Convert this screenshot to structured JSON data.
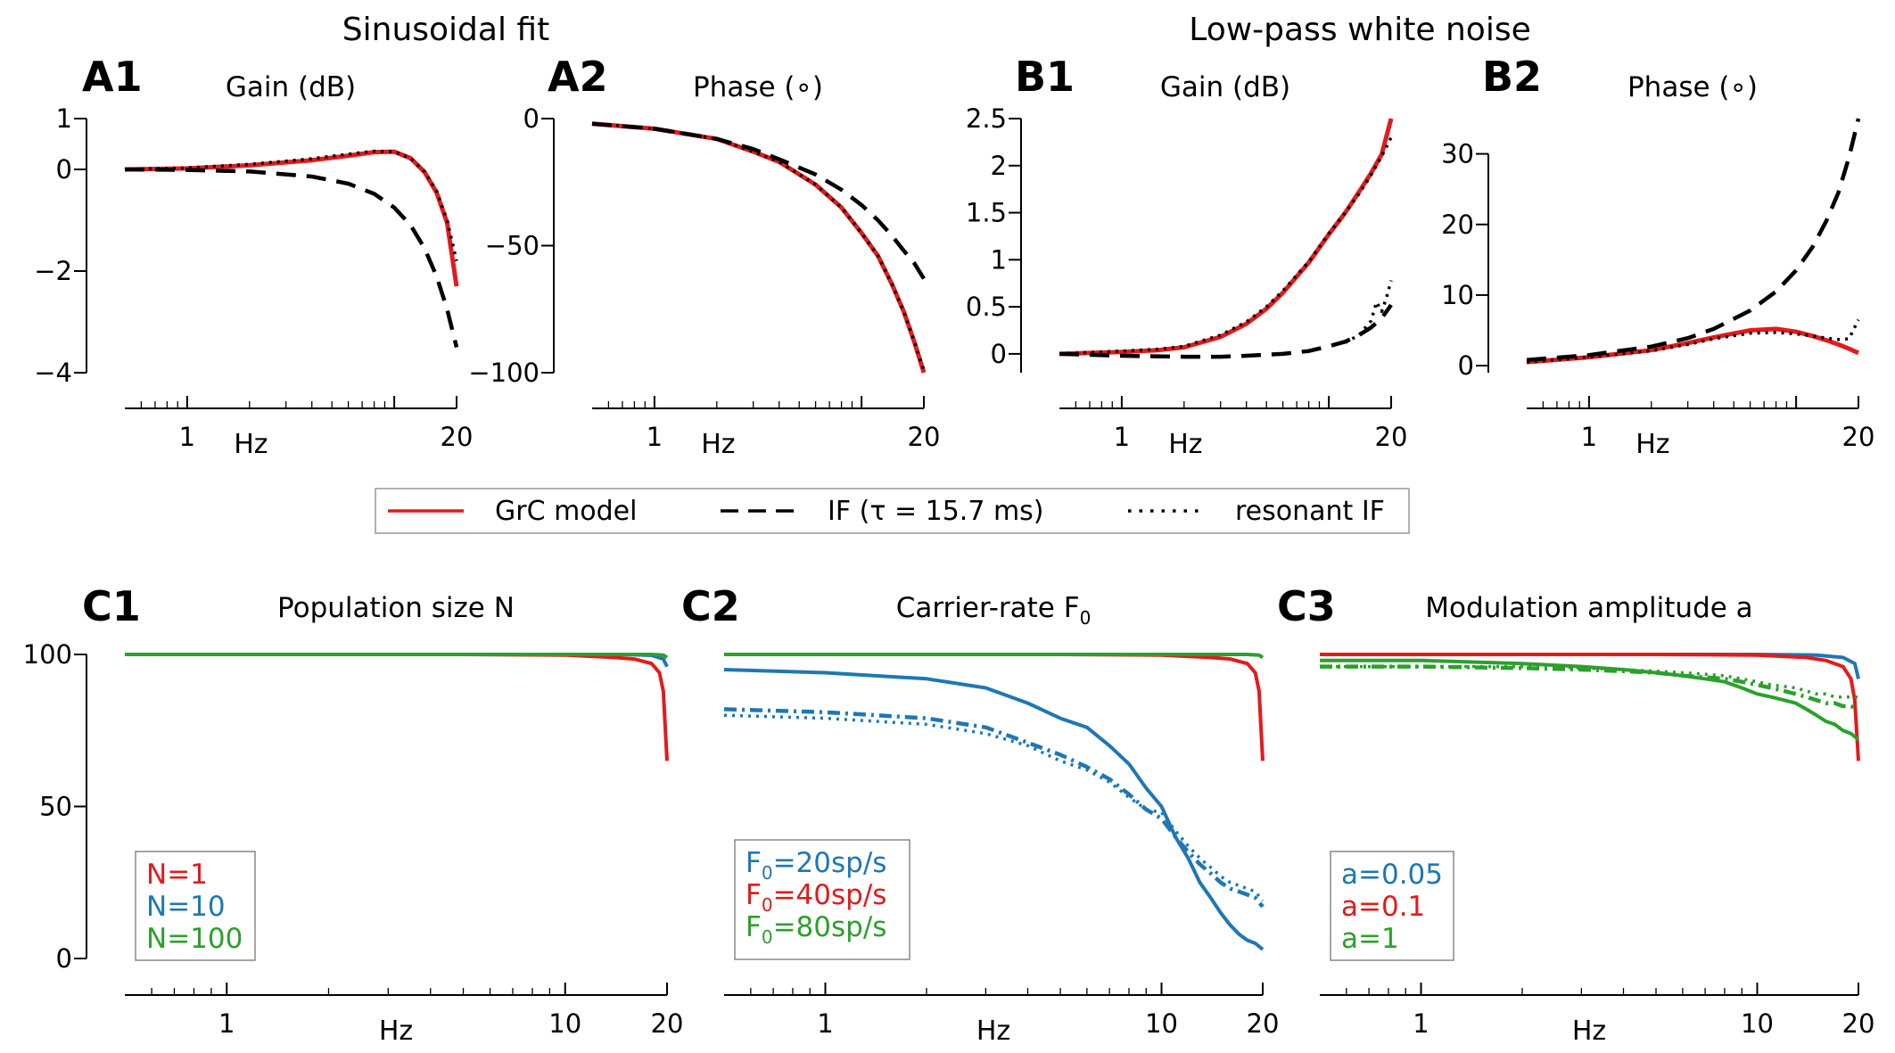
{
  "figure": {
    "group_titles": {
      "sinusoidal": "Sinusoidal fit",
      "lowpass": "Low-pass white noise"
    },
    "legend_top": [
      {
        "label": "GrC model",
        "color": "#e31a1c",
        "style": "solid"
      },
      {
        "label": "IF (τ = 15.7 ms)",
        "color": "#000000",
        "style": "dashed"
      },
      {
        "label": "resonant IF",
        "color": "#000000",
        "style": "dotted"
      }
    ],
    "colors": {
      "red": "#e31a1c",
      "blue": "#1f77b4",
      "green": "#2ca02c",
      "black": "#000000"
    }
  },
  "chart_data": [
    {
      "id": "A1",
      "panel_label": "A1",
      "title": "Gain (dB)",
      "type": "line",
      "xlabel": "Hz",
      "xscale": "log",
      "xlim": [
        0.5,
        20
      ],
      "xticks": [
        1,
        20
      ],
      "ylim": [
        -4,
        1
      ],
      "yticks": [
        1,
        0,
        -2,
        -4
      ],
      "ytick_labels": [
        "1",
        "0",
        "−2",
        "−4"
      ],
      "series": [
        {
          "color": "#e31a1c",
          "style": "solid",
          "x": [
            0.5,
            1,
            2,
            4,
            6,
            8,
            10,
            12,
            14,
            16,
            18,
            20
          ],
          "y": [
            0,
            0.02,
            0.08,
            0.18,
            0.27,
            0.34,
            0.35,
            0.22,
            -0.05,
            -0.45,
            -1.05,
            -2.3
          ]
        },
        {
          "color": "#000000",
          "style": "dashed",
          "x": [
            0.5,
            1,
            2,
            4,
            6,
            8,
            10,
            12,
            14,
            16,
            18,
            20
          ],
          "y": [
            0,
            -0.01,
            -0.04,
            -0.14,
            -0.28,
            -0.48,
            -0.75,
            -1.1,
            -1.55,
            -2.1,
            -2.75,
            -3.5
          ]
        },
        {
          "color": "#000000",
          "style": "dotted",
          "x": [
            0.5,
            1,
            2,
            4,
            6,
            8,
            10,
            12,
            14,
            16,
            18,
            20
          ],
          "y": [
            0,
            0.03,
            0.1,
            0.21,
            0.3,
            0.36,
            0.35,
            0.22,
            -0.05,
            -0.42,
            -1.0,
            -1.8
          ]
        }
      ]
    },
    {
      "id": "A2",
      "panel_label": "A2",
      "title": "Phase (∘)",
      "type": "line",
      "xlabel": "Hz",
      "xscale": "log",
      "xlim": [
        0.5,
        20
      ],
      "xticks": [
        1,
        20
      ],
      "ylim": [
        -100,
        0
      ],
      "yticks": [
        0,
        -50,
        -100
      ],
      "ytick_labels": [
        "0",
        "−50",
        "−100"
      ],
      "series": [
        {
          "color": "#e31a1c",
          "style": "solid",
          "x": [
            0.5,
            1,
            2,
            3,
            4,
            6,
            8,
            10,
            12,
            14,
            16,
            18,
            20
          ],
          "y": [
            -2,
            -4,
            -8,
            -13,
            -17,
            -26,
            -35,
            -45,
            -54,
            -65,
            -76,
            -88,
            -100
          ]
        },
        {
          "color": "#000000",
          "style": "dashed",
          "x": [
            0.5,
            1,
            2,
            3,
            4,
            6,
            8,
            10,
            12,
            14,
            16,
            18,
            20
          ],
          "y": [
            -2,
            -4,
            -8,
            -12,
            -16,
            -22,
            -28,
            -34,
            -40,
            -46,
            -52,
            -57,
            -63
          ]
        },
        {
          "color": "#000000",
          "style": "dotted",
          "x": [
            0.5,
            1,
            2,
            3,
            4,
            6,
            8,
            10,
            12,
            14,
            16,
            18,
            20
          ],
          "y": [
            -2,
            -4,
            -8,
            -13,
            -17,
            -26,
            -35,
            -45,
            -54,
            -65,
            -76,
            -88,
            -99
          ]
        }
      ]
    },
    {
      "id": "B1",
      "panel_label": "B1",
      "title": "Gain (dB)",
      "type": "line",
      "xlabel": "Hz",
      "xscale": "log",
      "xlim": [
        0.5,
        20
      ],
      "xticks": [
        1,
        20
      ],
      "ylim": [
        -0.2,
        2.5
      ],
      "yticks": [
        2.5,
        2,
        1.5,
        1,
        0.5,
        0
      ],
      "ytick_labels": [
        "2.5",
        "2",
        "1.5",
        "1",
        "0.5",
        "0"
      ],
      "series": [
        {
          "color": "#e31a1c",
          "style": "solid",
          "x": [
            0.5,
            1,
            1.5,
            2,
            3,
            4,
            5,
            6,
            8,
            10,
            12,
            14,
            16,
            18,
            20
          ],
          "y": [
            0,
            0.02,
            0.04,
            0.07,
            0.18,
            0.32,
            0.48,
            0.65,
            0.97,
            1.27,
            1.5,
            1.72,
            1.92,
            2.12,
            2.5
          ]
        },
        {
          "color": "#000000",
          "style": "dashed",
          "x": [
            0.5,
            1,
            2,
            3,
            4,
            6,
            8,
            10,
            12,
            14,
            16,
            18,
            20
          ],
          "y": [
            0,
            -0.02,
            -0.03,
            -0.03,
            -0.02,
            0.0,
            0.03,
            0.08,
            0.13,
            0.2,
            0.28,
            0.38,
            0.52
          ]
        },
        {
          "color": "#000000",
          "style": "dotted",
          "x": [
            0.5,
            1,
            1.5,
            2,
            3,
            4,
            5,
            6,
            8,
            10,
            12,
            14,
            16,
            18,
            20
          ],
          "y": [
            0,
            0.03,
            0.05,
            0.08,
            0.2,
            0.34,
            0.5,
            0.67,
            0.98,
            1.28,
            1.5,
            1.7,
            1.9,
            2.1,
            2.3
          ]
        },
        {
          "color": "#000000",
          "style": "dotted",
          "x": [
            12,
            14,
            16,
            17,
            18,
            19,
            20
          ],
          "y": [
            0.12,
            0.2,
            0.35,
            0.55,
            0.45,
            0.6,
            0.78
          ]
        }
      ]
    },
    {
      "id": "B2",
      "panel_label": "B2",
      "title": "Phase (∘)",
      "type": "line",
      "xlabel": "Hz",
      "xscale": "log",
      "xlim": [
        0.5,
        20
      ],
      "xticks": [
        1,
        20
      ],
      "ylim": [
        -1,
        35
      ],
      "yticks": [
        30,
        20,
        10,
        0
      ],
      "ytick_labels": [
        "30",
        "20",
        "10",
        "0"
      ],
      "series": [
        {
          "color": "#e31a1c",
          "style": "solid",
          "x": [
            0.5,
            1,
            2,
            3,
            4,
            6,
            8,
            10,
            12,
            14,
            16,
            18,
            20
          ],
          "y": [
            0.5,
            1.2,
            2.2,
            3.2,
            4.0,
            5.0,
            5.2,
            4.8,
            4.2,
            3.6,
            3.0,
            2.4,
            1.8
          ]
        },
        {
          "color": "#000000",
          "style": "dashed",
          "x": [
            0.5,
            1,
            2,
            3,
            4,
            6,
            8,
            10,
            12,
            14,
            16,
            18,
            20
          ],
          "y": [
            0.8,
            1.5,
            2.7,
            3.9,
            5.2,
            7.8,
            10.5,
            13.5,
            16.8,
            20.5,
            24.5,
            29.5,
            35
          ]
        },
        {
          "color": "#000000",
          "style": "dotted",
          "x": [
            0.5,
            1,
            2,
            3,
            4,
            6,
            8,
            10,
            12,
            14,
            16,
            18,
            20
          ],
          "y": [
            0.5,
            1.2,
            2.1,
            3.0,
            3.8,
            4.6,
            4.7,
            4.5,
            4.2,
            3.9,
            3.7,
            3.8,
            6.5
          ]
        }
      ]
    },
    {
      "id": "C1",
      "panel_label": "C1",
      "title": "Population size N",
      "type": "line",
      "xlabel": "Hz",
      "xscale": "log",
      "xlim": [
        0.5,
        20
      ],
      "xticks": [
        1,
        10,
        20
      ],
      "ylim": [
        0,
        100
      ],
      "yticks": [
        100,
        50,
        0
      ],
      "ytick_labels": [
        "100",
        "50",
        "0"
      ],
      "legend": [
        {
          "label": "N=1",
          "color": "#e31a1c"
        },
        {
          "label": "N=10",
          "color": "#1f77b4"
        },
        {
          "label": "N=100",
          "color": "#2ca02c"
        }
      ],
      "series": [
        {
          "color": "#e31a1c",
          "style": "solid",
          "x": [
            0.5,
            2,
            5,
            10,
            14,
            16,
            18,
            19,
            19.5,
            20
          ],
          "y": [
            100,
            100,
            100,
            99.8,
            99,
            98.5,
            97,
            94,
            88,
            65
          ]
        },
        {
          "color": "#1f77b4",
          "style": "solid",
          "x": [
            0.5,
            5,
            10,
            15,
            18,
            19.5,
            20
          ],
          "y": [
            100,
            100,
            100,
            100,
            99.7,
            98.5,
            96
          ]
        },
        {
          "color": "#2ca02c",
          "style": "solid",
          "x": [
            0.5,
            5,
            10,
            15,
            18,
            19.5,
            20
          ],
          "y": [
            100,
            100,
            100,
            100,
            100,
            99.8,
            99
          ]
        }
      ]
    },
    {
      "id": "C2",
      "panel_label": "C2",
      "title": "Carrier-rate F",
      "title_sub": "0",
      "type": "line",
      "xlabel": "Hz",
      "xscale": "log",
      "xlim": [
        0.5,
        20
      ],
      "xticks": [
        1,
        10,
        20
      ],
      "ylim": [
        0,
        100
      ],
      "yticks": [],
      "ytick_labels": [],
      "legend": [
        {
          "label": "F",
          "sub": "0",
          "rest": "=20sp/s",
          "color": "#1f77b4"
        },
        {
          "label": "F",
          "sub": "0",
          "rest": "=40sp/s",
          "color": "#e31a1c"
        },
        {
          "label": "F",
          "sub": "0",
          "rest": "=80sp/s",
          "color": "#2ca02c"
        }
      ],
      "series": [
        {
          "color": "#1f77b4",
          "style": "solid",
          "x": [
            0.5,
            1,
            2,
            3,
            4,
            5,
            6,
            7,
            8,
            9,
            10,
            11,
            12,
            13,
            14,
            15,
            16,
            17,
            18,
            19,
            20
          ],
          "y": [
            95,
            94,
            92,
            89,
            84,
            79,
            76,
            70,
            64,
            56,
            50,
            40,
            33,
            25,
            20,
            15,
            11,
            8,
            6,
            5,
            3
          ]
        },
        {
          "color": "#1f77b4",
          "style": "dashed",
          "x": [
            0.5,
            1,
            2,
            3,
            4,
            5,
            6,
            7,
            8,
            9,
            10,
            11,
            12,
            13,
            14,
            15,
            16,
            17,
            18,
            19,
            20
          ],
          "y": [
            82,
            81,
            79,
            76,
            71,
            67,
            63,
            59,
            54,
            49,
            46,
            40,
            35,
            31,
            28,
            25,
            23,
            22,
            21,
            20,
            17
          ]
        },
        {
          "color": "#1f77b4",
          "style": "dotted",
          "x": [
            0.5,
            1,
            2,
            3,
            4,
            5,
            6,
            7,
            8,
            9,
            10,
            11,
            12,
            13,
            14,
            15,
            16,
            17,
            18,
            19,
            20
          ],
          "y": [
            80,
            79,
            77,
            74,
            70,
            65,
            62,
            58,
            53,
            49,
            48,
            42,
            37,
            33,
            30,
            27,
            25,
            24,
            23,
            22,
            19
          ]
        },
        {
          "color": "#e31a1c",
          "style": "solid",
          "x": [
            0.5,
            2,
            5,
            10,
            14,
            16,
            18,
            19,
            19.5,
            20
          ],
          "y": [
            100,
            100,
            100,
            99.8,
            99,
            98.5,
            97,
            94,
            88,
            65
          ]
        },
        {
          "color": "#2ca02c",
          "style": "solid",
          "x": [
            0.5,
            5,
            10,
            15,
            18,
            19.5,
            20
          ],
          "y": [
            100,
            100,
            100,
            100,
            100,
            99.8,
            99
          ]
        }
      ]
    },
    {
      "id": "C3",
      "panel_label": "C3",
      "title": "Modulation amplitude a",
      "type": "line",
      "xlabel": "Hz",
      "xscale": "log",
      "xlim": [
        0.5,
        20
      ],
      "xticks": [
        1,
        10,
        20
      ],
      "ylim": [
        0,
        100
      ],
      "yticks": [],
      "ytick_labels": [],
      "legend": [
        {
          "label": "a=0.05",
          "color": "#1f77b4"
        },
        {
          "label": "a=0.1",
          "color": "#e31a1c"
        },
        {
          "label": "a=1",
          "color": "#2ca02c"
        }
      ],
      "series": [
        {
          "color": "#1f77b4",
          "style": "solid",
          "x": [
            0.5,
            5,
            10,
            15,
            18,
            19.5,
            20
          ],
          "y": [
            100,
            100,
            100,
            99.8,
            99,
            97,
            92
          ]
        },
        {
          "color": "#e31a1c",
          "style": "solid",
          "x": [
            0.5,
            5,
            10,
            14,
            16,
            18,
            19,
            19.5,
            20
          ],
          "y": [
            100,
            100,
            99.8,
            99,
            98,
            96,
            92,
            85,
            65
          ]
        },
        {
          "color": "#2ca02c",
          "style": "solid",
          "x": [
            0.5,
            1,
            2,
            3,
            4,
            5,
            6,
            7,
            8,
            9,
            10,
            11,
            12,
            13,
            14,
            15,
            16,
            17,
            18,
            19,
            20
          ],
          "y": [
            98,
            98,
            97,
            96,
            95,
            94,
            93,
            92,
            91,
            89,
            87,
            86,
            85,
            84,
            82,
            80,
            78,
            77,
            75,
            74,
            72
          ]
        },
        {
          "color": "#2ca02c",
          "style": "dashed",
          "x": [
            0.5,
            1,
            2,
            3,
            4,
            5,
            6,
            7,
            8,
            9,
            10,
            11,
            12,
            13,
            14,
            15,
            16,
            17,
            18,
            19,
            20
          ],
          "y": [
            96,
            96,
            95.5,
            95,
            94.5,
            94,
            93,
            92.5,
            92,
            91,
            90,
            89,
            88,
            87,
            86,
            85,
            84,
            84,
            83,
            83,
            82
          ]
        },
        {
          "color": "#2ca02c",
          "style": "dotted",
          "x": [
            0.5,
            1,
            2,
            3,
            4,
            5,
            6,
            7,
            8,
            9,
            10,
            11,
            12,
            13,
            14,
            15,
            16,
            17,
            18,
            19,
            20
          ],
          "y": [
            96,
            96,
            96,
            95.5,
            95,
            94.5,
            94,
            93.5,
            93,
            92,
            91,
            90,
            89.5,
            89,
            88,
            87,
            87,
            86,
            86,
            86,
            86
          ]
        }
      ]
    }
  ]
}
